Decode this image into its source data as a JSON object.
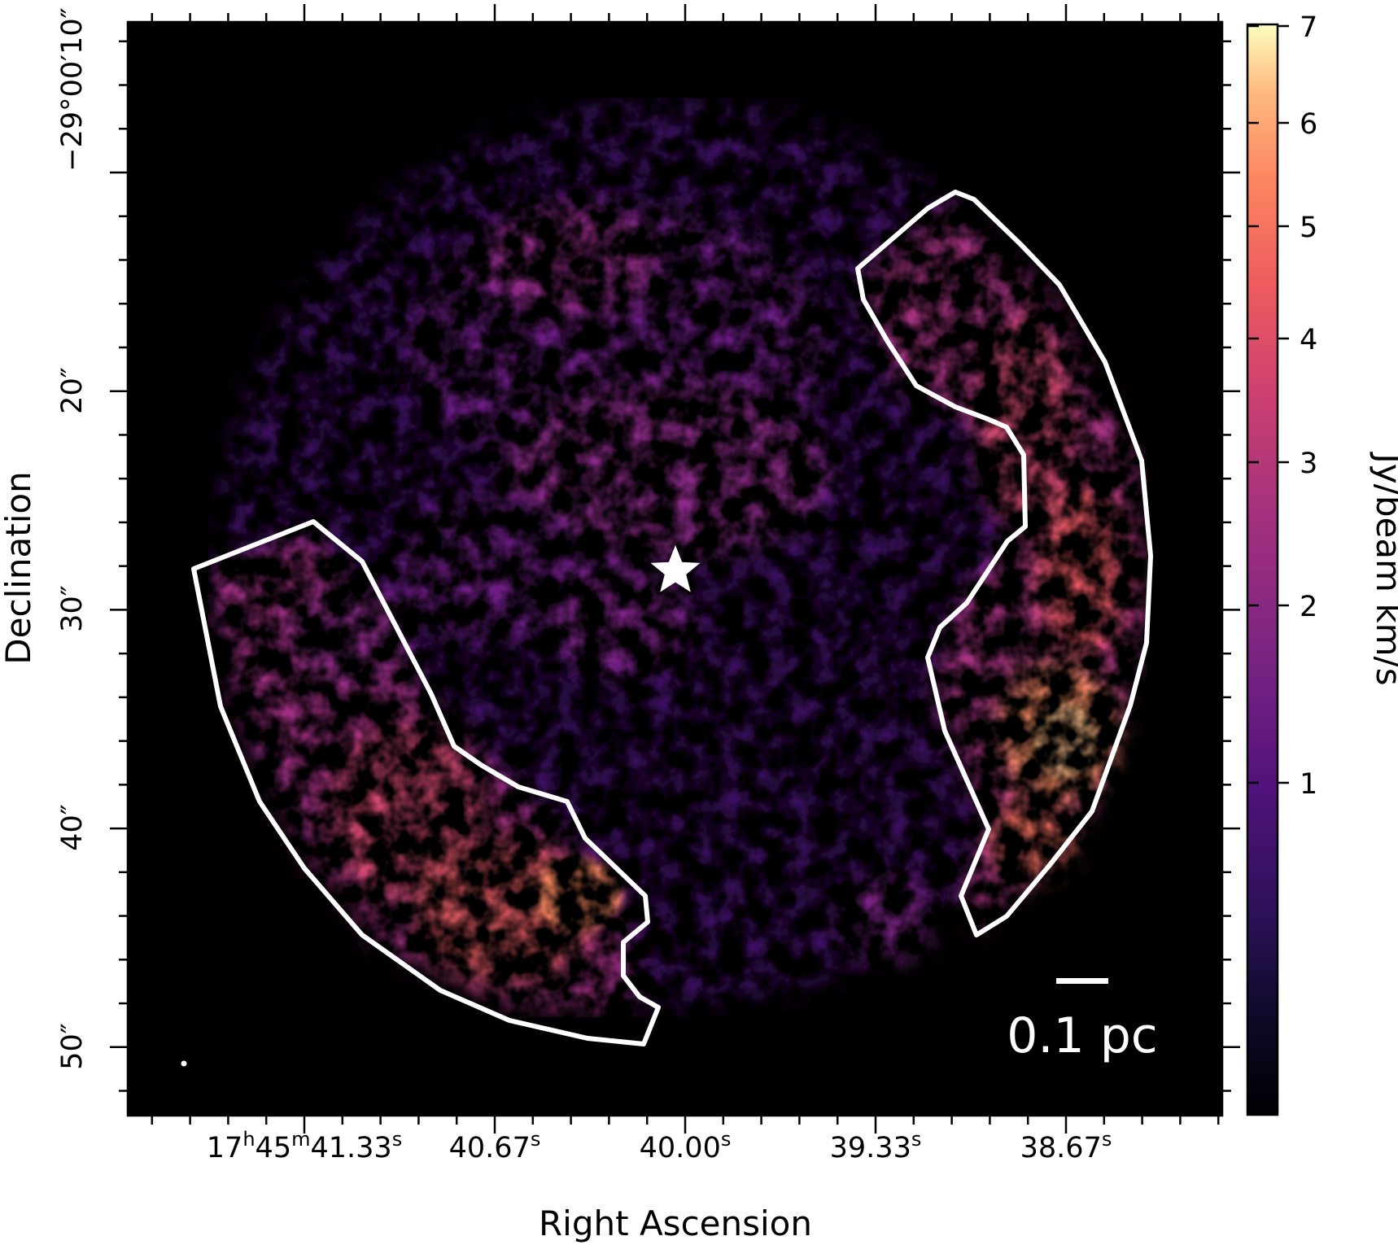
{
  "figure": {
    "x_axis": {
      "label": "Right Ascension",
      "ticks": [
        {
          "value_s": 41.33,
          "text": "17",
          "sup1": "h",
          "mid": "45",
          "sup2": "m",
          "main": "41.33",
          "sup3": "s"
        },
        {
          "value_s": 40.67,
          "text": "",
          "main": "40.67",
          "sup3": "s"
        },
        {
          "value_s": 40.0,
          "text": "",
          "main": "40.00",
          "sup3": "s"
        },
        {
          "value_s": 39.33,
          "text": "",
          "main": "39.33",
          "sup3": "s"
        },
        {
          "value_s": 38.67,
          "text": "",
          "main": "38.67",
          "sup3": "s"
        }
      ]
    },
    "y_axis": {
      "label": "Declination",
      "ticks": [
        {
          "value_arcsec": 10,
          "text": "−29°00′10″"
        },
        {
          "value_arcsec": 20,
          "text": "20″"
        },
        {
          "value_arcsec": 30,
          "text": "30″"
        },
        {
          "value_arcsec": 40,
          "text": "40″"
        },
        {
          "value_arcsec": 50,
          "text": "50″"
        }
      ]
    },
    "colorbar": {
      "label": "Jy/beam km/s",
      "colormap": "magma",
      "scale": "sqrt",
      "range": [
        0,
        7
      ],
      "ticks": [
        "1",
        "2",
        "3",
        "4",
        "5",
        "6",
        "7"
      ]
    },
    "scalebar": {
      "label": "0.1 pc"
    },
    "markers": {
      "center": "star-icon",
      "beam": "beam-dot"
    },
    "regions": [
      "east-filament-region",
      "west-filament-region"
    ],
    "colors": {
      "outline": "#ffffff",
      "background": "#000000"
    }
  }
}
